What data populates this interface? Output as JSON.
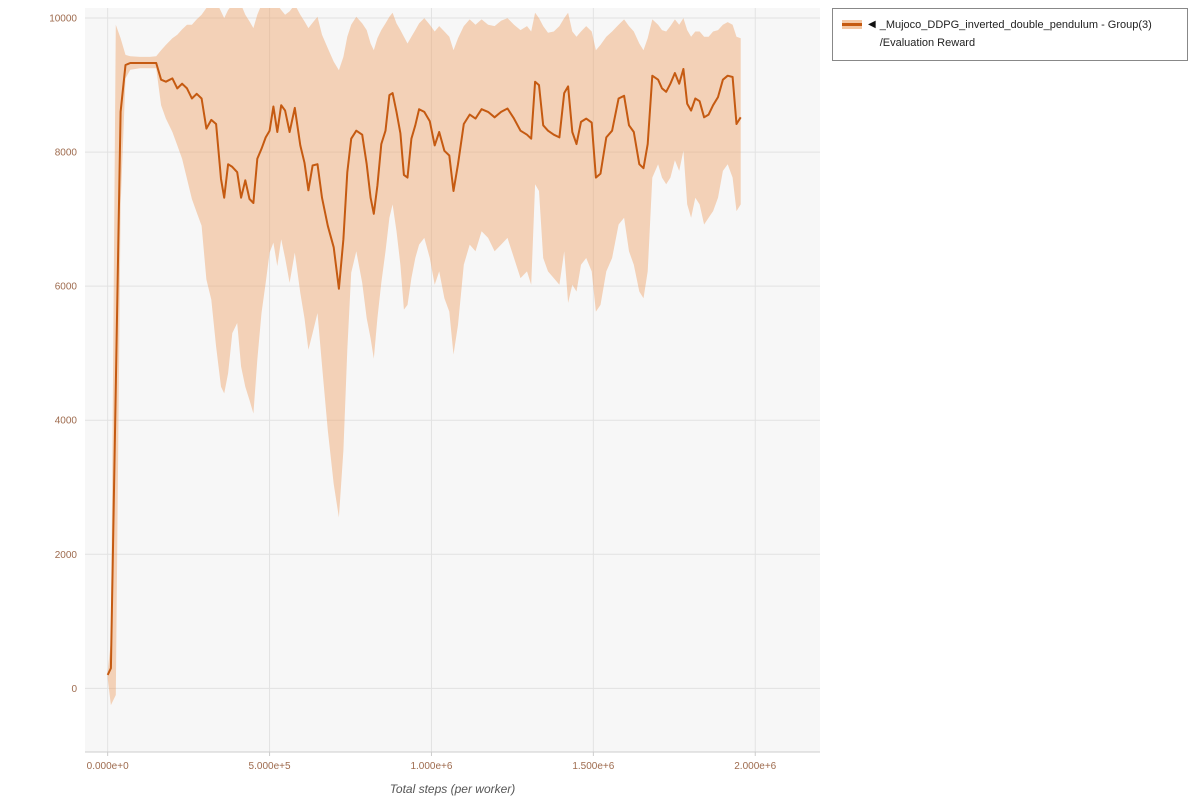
{
  "colors": {
    "line": "#c55a11",
    "band": "#eda268",
    "band_opacity": 0.45,
    "plot_bg": "#f7f7f7",
    "grid": "#e2e2e2",
    "axis": "#cccccc",
    "tick_text": "#9e6b4e",
    "xlabel_text": "#555555"
  },
  "legend": {
    "toggle_marker": "◀",
    "label_line1": "_Mujoco_DDPG_inverted_double_pendulum - Group(3)",
    "label_line2": "/Evaluation Reward"
  },
  "chart_data": {
    "type": "line",
    "title": "",
    "xlabel": "Total steps (per worker)",
    "ylabel": "",
    "legend_position": "top-right",
    "grid": true,
    "x_ticks": [
      {
        "value": 0,
        "label": "0.000e+0"
      },
      {
        "value": 500000,
        "label": "5.000e+5"
      },
      {
        "value": 1000000,
        "label": "1.000e+6"
      },
      {
        "value": 1500000,
        "label": "1.500e+6"
      },
      {
        "value": 2000000,
        "label": "2.000e+6"
      }
    ],
    "y_ticks": [
      {
        "value": 0,
        "label": "0"
      },
      {
        "value": 2000,
        "label": "2000"
      },
      {
        "value": 4000,
        "label": "4000"
      },
      {
        "value": 6000,
        "label": "6000"
      },
      {
        "value": 8000,
        "label": "8000"
      },
      {
        "value": 10000,
        "label": "10000"
      }
    ],
    "xlim": [
      -70000,
      2200000
    ],
    "ylim": [
      -950,
      10150
    ],
    "series_name": "_Mujoco_DDPG_inverted_double_pendulum - Group(3)/Evaluation Reward",
    "points_format": [
      "x",
      "lower",
      "mean",
      "upper"
    ],
    "points": [
      [
        0,
        150,
        200,
        250
      ],
      [
        10000,
        -250,
        300,
        700
      ],
      [
        25000,
        -100,
        4500,
        9900
      ],
      [
        40000,
        7200,
        8600,
        9700
      ],
      [
        55000,
        9100,
        9300,
        9450
      ],
      [
        70000,
        9230,
        9330,
        9430
      ],
      [
        100000,
        9250,
        9330,
        9420
      ],
      [
        130000,
        9250,
        9330,
        9420
      ],
      [
        150000,
        9250,
        9330,
        9430
      ],
      [
        165000,
        8700,
        9080,
        9520
      ],
      [
        180000,
        8500,
        9050,
        9600
      ],
      [
        200000,
        8300,
        9100,
        9700
      ],
      [
        215000,
        8100,
        8950,
        9750
      ],
      [
        230000,
        7900,
        9020,
        9830
      ],
      [
        245000,
        7600,
        8950,
        9900
      ],
      [
        260000,
        7300,
        8800,
        9900
      ],
      [
        275000,
        7100,
        8870,
        9980
      ],
      [
        290000,
        6900,
        8800,
        10050
      ],
      [
        305000,
        6100,
        8350,
        10150
      ],
      [
        320000,
        5800,
        8480,
        10300
      ],
      [
        335000,
        5100,
        8420,
        10250
      ],
      [
        350000,
        4500,
        7600,
        10100
      ],
      [
        360000,
        4400,
        7320,
        10000
      ],
      [
        372000,
        4700,
        7820,
        10120
      ],
      [
        385000,
        5300,
        7780,
        10200
      ],
      [
        400000,
        5450,
        7700,
        10300
      ],
      [
        412000,
        4800,
        7320,
        10200
      ],
      [
        425000,
        4500,
        7580,
        10050
      ],
      [
        438000,
        4300,
        7300,
        9950
      ],
      [
        450000,
        4100,
        7240,
        9850
      ],
      [
        462000,
        4900,
        7900,
        10050
      ],
      [
        475000,
        5600,
        8050,
        10200
      ],
      [
        488000,
        6050,
        8220,
        10300
      ],
      [
        500000,
        6500,
        8320,
        10250
      ],
      [
        512000,
        6650,
        8680,
        10300
      ],
      [
        524000,
        6300,
        8300,
        10200
      ],
      [
        536000,
        6700,
        8700,
        10120
      ],
      [
        548000,
        6420,
        8620,
        10050
      ],
      [
        562000,
        6050,
        8300,
        10100
      ],
      [
        578000,
        6500,
        8660,
        10200
      ],
      [
        595000,
        5900,
        8100,
        10050
      ],
      [
        608000,
        5520,
        7840,
        9950
      ],
      [
        620000,
        5050,
        7430,
        9850
      ],
      [
        633000,
        5300,
        7800,
        9930
      ],
      [
        648000,
        5600,
        7820,
        10020
      ],
      [
        662000,
        4820,
        7320,
        9750
      ],
      [
        680000,
        3850,
        6900,
        9550
      ],
      [
        698000,
        3050,
        6580,
        9350
      ],
      [
        714000,
        2550,
        5960,
        9220
      ],
      [
        728000,
        3550,
        6700,
        9420
      ],
      [
        740000,
        5050,
        7700,
        9720
      ],
      [
        752000,
        6200,
        8200,
        9900
      ],
      [
        768000,
        6520,
        8320,
        10020
      ],
      [
        786000,
        6050,
        8260,
        9920
      ],
      [
        800000,
        5520,
        7820,
        9820
      ],
      [
        812000,
        5220,
        7320,
        9620
      ],
      [
        822000,
        4920,
        7080,
        9520
      ],
      [
        833000,
        5520,
        7500,
        9700
      ],
      [
        845000,
        6050,
        8120,
        9820
      ],
      [
        858000,
        6520,
        8320,
        9920
      ],
      [
        870000,
        7020,
        8850,
        10020
      ],
      [
        880000,
        7220,
        8880,
        10080
      ],
      [
        892000,
        6820,
        8600,
        9920
      ],
      [
        904000,
        6320,
        8280,
        9820
      ],
      [
        915000,
        5650,
        7660,
        9720
      ],
      [
        926000,
        5720,
        7620,
        9620
      ],
      [
        938000,
        6120,
        8200,
        9720
      ],
      [
        950000,
        6420,
        8400,
        9820
      ],
      [
        962000,
        6620,
        8640,
        9920
      ],
      [
        978000,
        6720,
        8600,
        10000
      ],
      [
        995000,
        6420,
        8460,
        9900
      ],
      [
        1010000,
        6020,
        8100,
        9800
      ],
      [
        1024000,
        6220,
        8300,
        9880
      ],
      [
        1040000,
        5820,
        8020,
        9800
      ],
      [
        1055000,
        5620,
        7950,
        9720
      ],
      [
        1068000,
        4980,
        7420,
        9520
      ],
      [
        1082000,
        5420,
        7820,
        9700
      ],
      [
        1100000,
        6320,
        8420,
        9880
      ],
      [
        1118000,
        6620,
        8560,
        9980
      ],
      [
        1136000,
        6520,
        8500,
        9900
      ],
      [
        1155000,
        6820,
        8640,
        9980
      ],
      [
        1175000,
        6720,
        8600,
        9900
      ],
      [
        1195000,
        6520,
        8520,
        9880
      ],
      [
        1215000,
        6620,
        8600,
        9960
      ],
      [
        1235000,
        6720,
        8650,
        10000
      ],
      [
        1255000,
        6420,
        8500,
        9900
      ],
      [
        1275000,
        6120,
        8320,
        9820
      ],
      [
        1295000,
        6220,
        8260,
        9880
      ],
      [
        1308000,
        6020,
        8200,
        9800
      ],
      [
        1320000,
        7520,
        9050,
        10080
      ],
      [
        1332000,
        7420,
        9000,
        10000
      ],
      [
        1345000,
        6420,
        8400,
        9880
      ],
      [
        1360000,
        6220,
        8320,
        9780
      ],
      [
        1378000,
        6120,
        8260,
        9800
      ],
      [
        1395000,
        6020,
        8220,
        9880
      ],
      [
        1410000,
        6520,
        8880,
        10000
      ],
      [
        1422000,
        5750,
        8980,
        10080
      ],
      [
        1435000,
        6020,
        8300,
        9800
      ],
      [
        1448000,
        5920,
        8120,
        9720
      ],
      [
        1462000,
        6320,
        8450,
        9800
      ],
      [
        1478000,
        6420,
        8500,
        9880
      ],
      [
        1495000,
        6220,
        8440,
        9800
      ],
      [
        1508000,
        5620,
        7620,
        9520
      ],
      [
        1522000,
        5720,
        7680,
        9600
      ],
      [
        1540000,
        6220,
        8220,
        9720
      ],
      [
        1558000,
        6420,
        8320,
        9800
      ],
      [
        1578000,
        6920,
        8800,
        9900
      ],
      [
        1595000,
        7020,
        8840,
        9980
      ],
      [
        1610000,
        6520,
        8400,
        9880
      ],
      [
        1625000,
        6320,
        8300,
        9800
      ],
      [
        1642000,
        5920,
        7820,
        9620
      ],
      [
        1655000,
        5820,
        7760,
        9520
      ],
      [
        1668000,
        6220,
        8120,
        9700
      ],
      [
        1682000,
        7620,
        9140,
        9980
      ],
      [
        1700000,
        7820,
        9080,
        9900
      ],
      [
        1712000,
        7620,
        8950,
        9820
      ],
      [
        1725000,
        7520,
        8900,
        9800
      ],
      [
        1738000,
        7620,
        9020,
        9880
      ],
      [
        1752000,
        7880,
        9180,
        9980
      ],
      [
        1765000,
        7720,
        9020,
        9900
      ],
      [
        1778000,
        8020,
        9240,
        10000
      ],
      [
        1790000,
        7220,
        8720,
        9820
      ],
      [
        1802000,
        7020,
        8620,
        9720
      ],
      [
        1815000,
        7320,
        8800,
        9800
      ],
      [
        1828000,
        7220,
        8760,
        9800
      ],
      [
        1842000,
        6920,
        8520,
        9720
      ],
      [
        1856000,
        7020,
        8560,
        9720
      ],
      [
        1870000,
        7120,
        8700,
        9800
      ],
      [
        1885000,
        7320,
        8820,
        9820
      ],
      [
        1900000,
        7720,
        9080,
        9900
      ],
      [
        1915000,
        7820,
        9140,
        9940
      ],
      [
        1930000,
        7620,
        9120,
        9900
      ],
      [
        1942000,
        7120,
        8420,
        9720
      ],
      [
        1955000,
        7220,
        8520,
        9700
      ]
    ]
  }
}
